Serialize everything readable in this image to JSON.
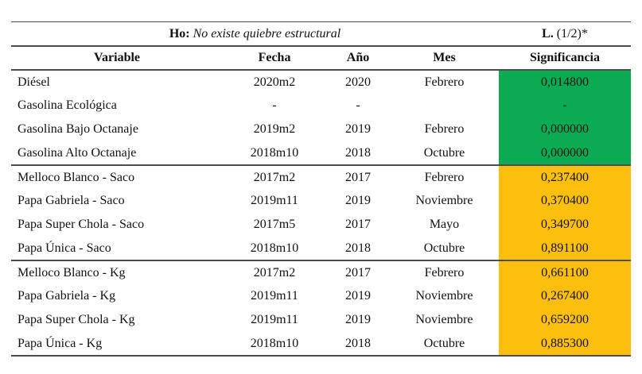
{
  "header": {
    "h0_label": "Ho:",
    "h0_hypothesis": "No existe quiebre estructural",
    "stat_label": "L.",
    "stat_suffix": "(1/2)*"
  },
  "columns": {
    "variable": "Variable",
    "fecha": "Fecha",
    "anio": "Año",
    "mes": "Mes",
    "significancia": "Significancia"
  },
  "colors": {
    "significant_green": "#0aab52",
    "non_significant_orange": "#fcbf0e",
    "line_gray": "#4d4d4d"
  },
  "table": {
    "rows": [
      {
        "variable": "Diésel",
        "fecha": "2020m2",
        "anio": "2020",
        "mes": "Febrero",
        "significancia": "0,014800"
      },
      {
        "variable": "Gasolina Ecológica",
        "fecha": "-",
        "anio": "-",
        "mes": "",
        "significancia": "-"
      },
      {
        "variable": "Gasolina Bajo Octanaje",
        "fecha": "2019m2",
        "anio": "2019",
        "mes": "Febrero",
        "significancia": "0,000000"
      },
      {
        "variable": "Gasolina Alto Octanaje",
        "fecha": "2018m10",
        "anio": "2018",
        "mes": "Octubre",
        "significancia": "0,000000"
      },
      {
        "variable": "Melloco Blanco - Saco",
        "fecha": "2017m2",
        "anio": "2017",
        "mes": "Febrero",
        "significancia": "0,237400"
      },
      {
        "variable": "Papa Gabriela - Saco",
        "fecha": "2019m11",
        "anio": "2019",
        "mes": "Noviembre",
        "significancia": "0,370400"
      },
      {
        "variable": "Papa Super Chola - Saco",
        "fecha": "2017m5",
        "anio": "2017",
        "mes": "Mayo",
        "significancia": "0,349700"
      },
      {
        "variable": "Papa Única - Saco",
        "fecha": "2018m10",
        "anio": "2018",
        "mes": "Octubre",
        "significancia": "0,891100"
      },
      {
        "variable": "Melloco Blanco - Kg",
        "fecha": "2017m2",
        "anio": "2017",
        "mes": "Febrero",
        "significancia": "0,661100"
      },
      {
        "variable": "Papa Gabriela - Kg",
        "fecha": "2019m11",
        "anio": "2019",
        "mes": "Noviembre",
        "significancia": "0,267400"
      },
      {
        "variable": "Papa Super Chola - Kg",
        "fecha": "2019m11",
        "anio": "2019",
        "mes": "Noviembre",
        "significancia": "0,659200"
      },
      {
        "variable": "Papa Única - Kg",
        "fecha": "2018m10",
        "anio": "2018",
        "mes": "Octubre",
        "significancia": "0,885300"
      }
    ]
  }
}
